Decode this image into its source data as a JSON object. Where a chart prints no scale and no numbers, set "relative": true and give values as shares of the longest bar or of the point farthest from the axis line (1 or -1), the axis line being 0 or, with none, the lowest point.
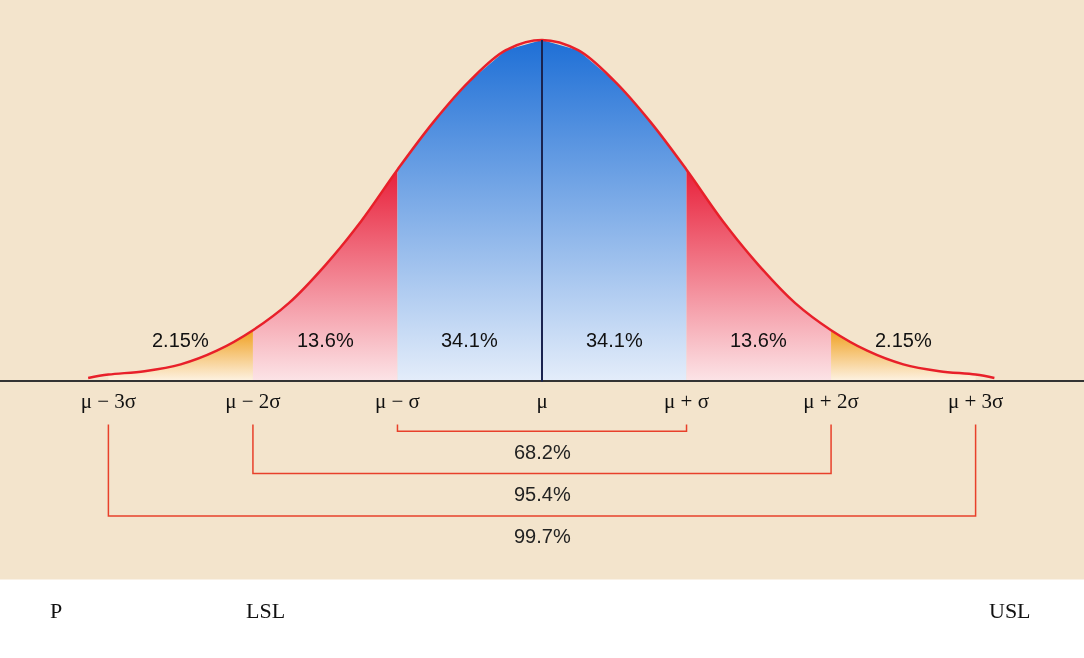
{
  "chart_data": {
    "type": "area",
    "relative": true,
    "grid": false,
    "xlim": [
      -3.75,
      3.75
    ],
    "xticks": [
      {
        "value": -3,
        "label": "μ − 3σ"
      },
      {
        "value": -2,
        "label": "μ − 2σ"
      },
      {
        "value": -1,
        "label": "μ − σ"
      },
      {
        "value": 0,
        "label": "μ"
      },
      {
        "value": 1,
        "label": "μ + σ"
      },
      {
        "value": 2,
        "label": "μ + 2σ"
      },
      {
        "value": 3,
        "label": "μ + 3σ"
      }
    ],
    "series": [
      {
        "type": "line",
        "color": "#e8202a",
        "x": [
          -3.14,
          -3,
          -2.75,
          -2.5,
          -2.25,
          -2,
          -1.75,
          -1.5,
          -1.25,
          -1,
          -0.75,
          -0.5,
          -0.25,
          0,
          0.25,
          0.5,
          0.75,
          1,
          1.25,
          1.5,
          1.75,
          2,
          2.25,
          2.5,
          2.75,
          3,
          3.13
        ],
        "values": [
          0.01,
          0.02,
          0.03,
          0.05,
          0.09,
          0.15,
          0.23,
          0.34,
          0.47,
          0.62,
          0.76,
          0.88,
          0.97,
          1,
          0.97,
          0.88,
          0.76,
          0.62,
          0.47,
          0.34,
          0.23,
          0.15,
          0.09,
          0.05,
          0.03,
          0.02,
          0.01
        ]
      },
      {
        "color": "#f0a020",
        "x": [
          -3,
          -2.75,
          -2.5,
          -2.25,
          -2
        ],
        "values": [
          0.02,
          0.03,
          0.05,
          0.09,
          0.15
        ]
      },
      {
        "color": "#e8203a",
        "x": [
          -2,
          -1.75,
          -1.5,
          -1.25,
          -1
        ],
        "values": [
          0.15,
          0.23,
          0.34,
          0.47,
          0.62
        ]
      },
      {
        "color": "#1e6fd6",
        "x": [
          -1,
          -0.75,
          -0.5,
          -0.25,
          0
        ],
        "values": [
          0.62,
          0.76,
          0.88,
          0.97,
          1
        ]
      },
      {
        "color": "#1e6fd6",
        "x": [
          0,
          0.25,
          0.5,
          0.75,
          1
        ],
        "values": [
          1,
          0.97,
          0.88,
          0.76,
          0.62
        ]
      },
      {
        "color": "#e8203a",
        "x": [
          1,
          1.25,
          1.5,
          1.75,
          2
        ],
        "values": [
          0.62,
          0.47,
          0.34,
          0.23,
          0.15
        ]
      },
      {
        "color": "#f0a020",
        "x": [
          2,
          2.25,
          2.5,
          2.75,
          3
        ],
        "values": [
          0.15,
          0.09,
          0.05,
          0.03,
          0.02
        ]
      }
    ],
    "ref_lines": [
      {
        "axis": "x",
        "value": 0,
        "color": "#1a2350"
      }
    ],
    "annotations": [
      "2.15%",
      "13.6%",
      "34.1%",
      "34.1%",
      "13.6%",
      "2.15%",
      "68.2%",
      "95.4%",
      "99.7%",
      "P",
      "LSL",
      "USL"
    ]
  }
}
